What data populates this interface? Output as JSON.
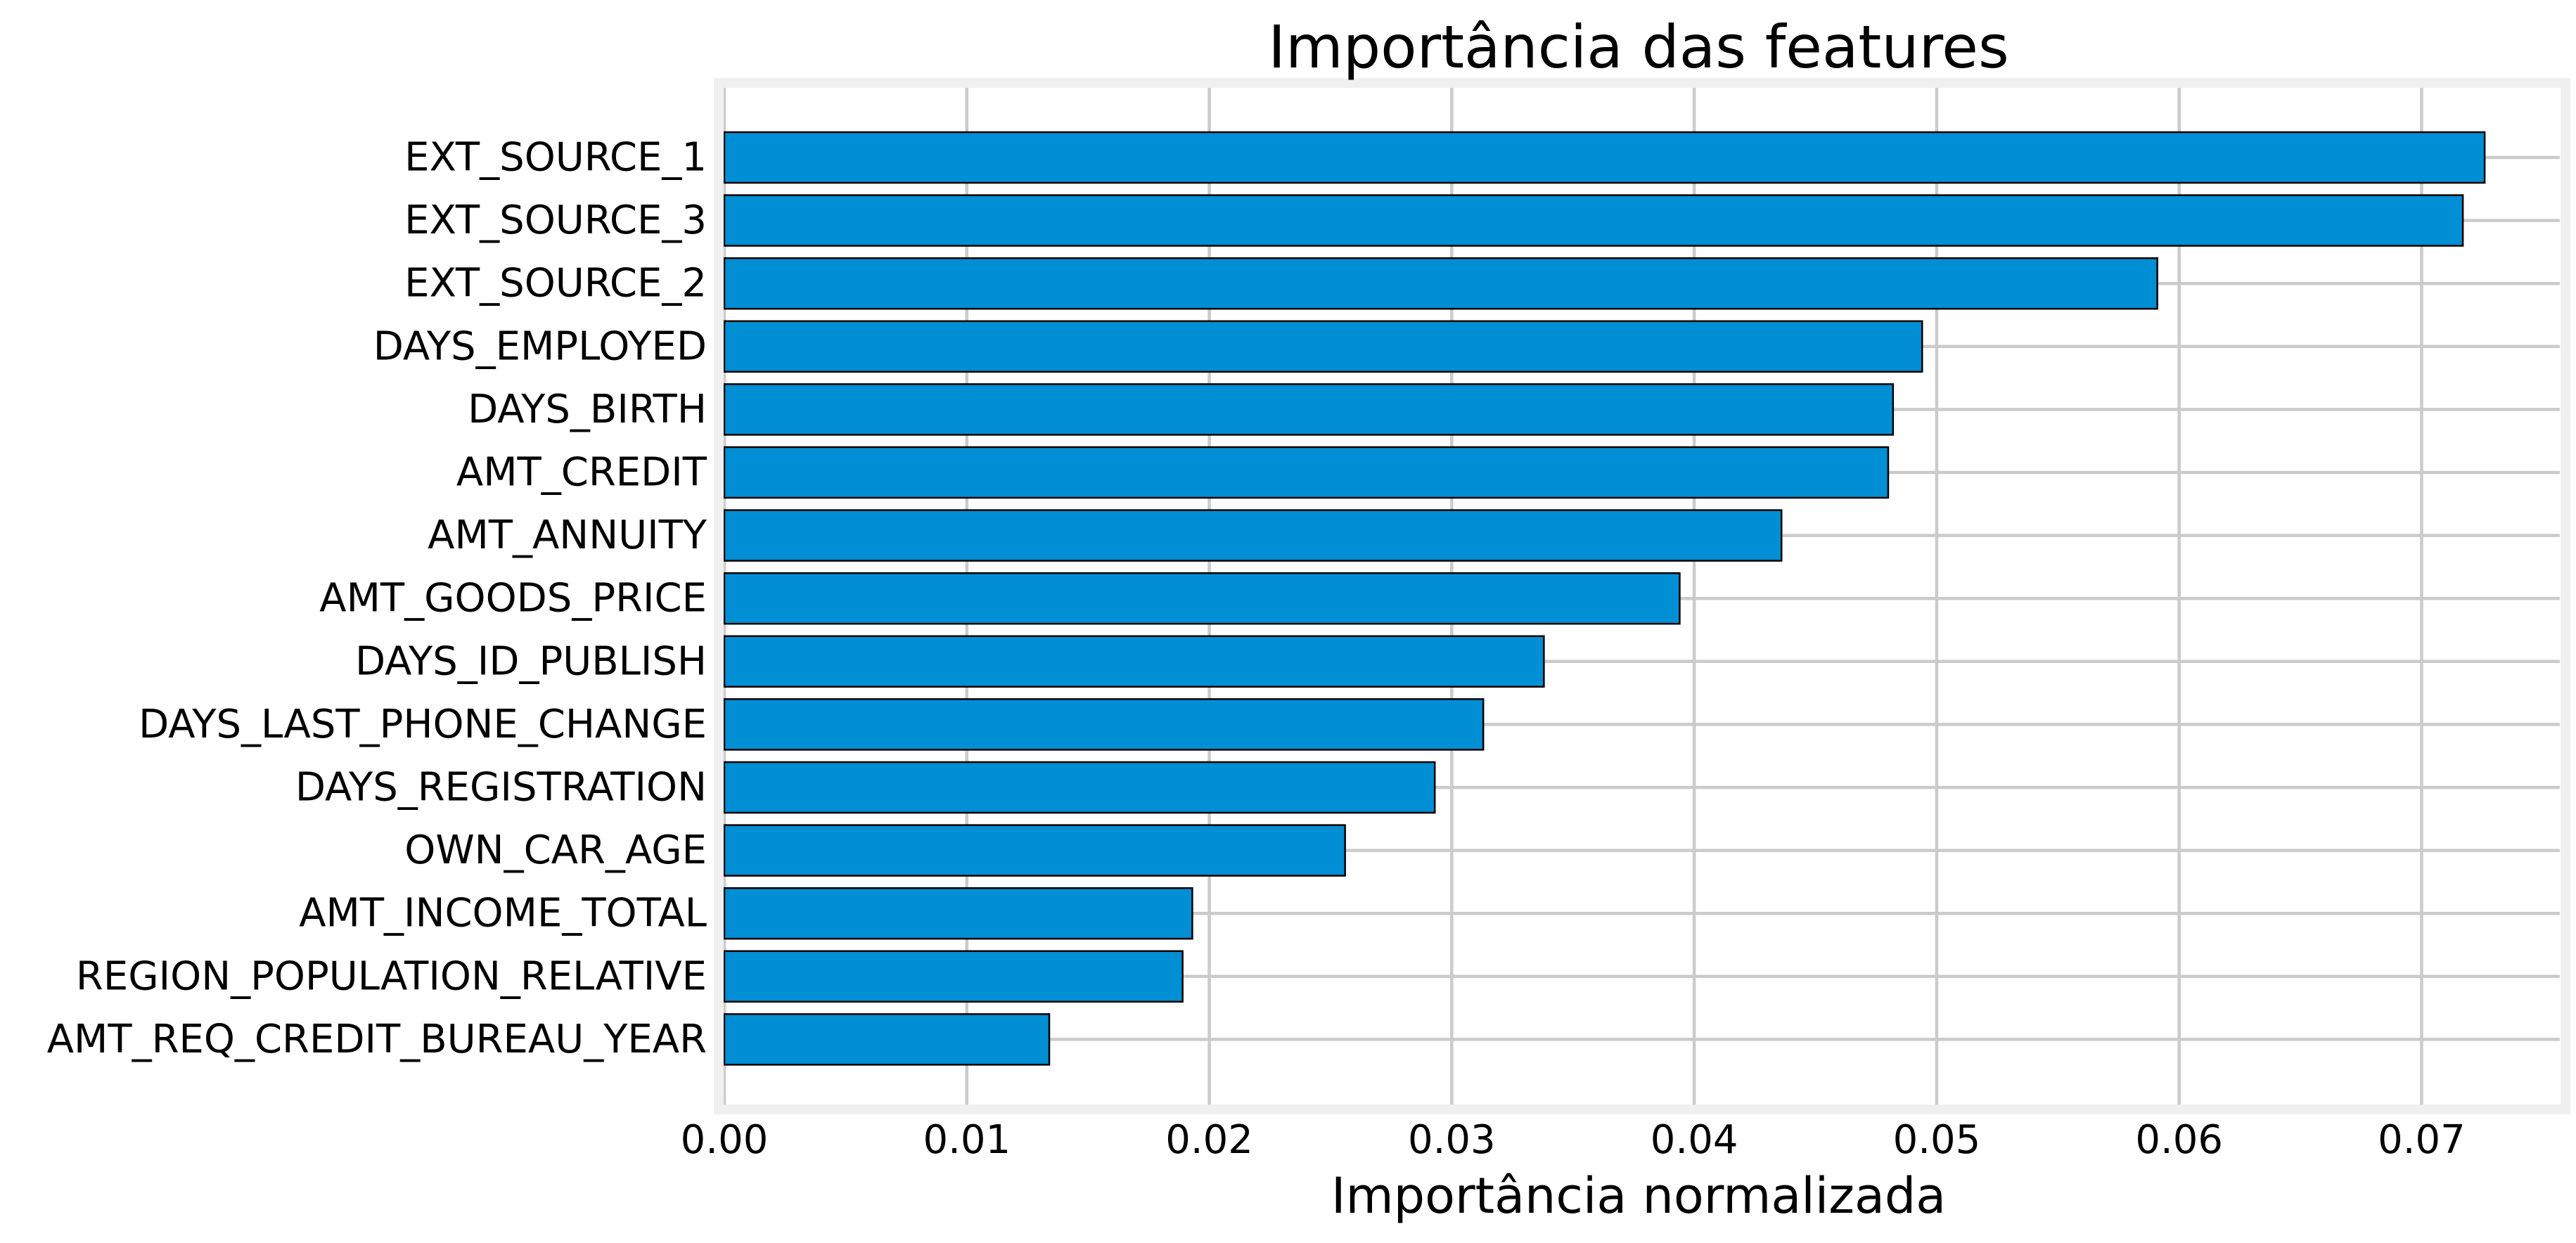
{
  "chart_data": {
    "type": "bar",
    "orientation": "horizontal",
    "title": "Importância das features",
    "xlabel": "Importância normalizada",
    "ylabel": "",
    "xlim": [
      0.0,
      0.0757
    ],
    "xticks": [
      0.0,
      0.01,
      0.02,
      0.03,
      0.04,
      0.05,
      0.06,
      0.07
    ],
    "xtick_labels": [
      "0.00",
      "0.01",
      "0.02",
      "0.03",
      "0.04",
      "0.05",
      "0.06",
      "0.07"
    ],
    "grid": true,
    "categories": [
      "EXT_SOURCE_1",
      "EXT_SOURCE_3",
      "EXT_SOURCE_2",
      "DAYS_EMPLOYED",
      "DAYS_BIRTH",
      "AMT_CREDIT",
      "AMT_ANNUITY",
      "AMT_GOODS_PRICE",
      "DAYS_ID_PUBLISH",
      "DAYS_LAST_PHONE_CHANGE",
      "DAYS_REGISTRATION",
      "OWN_CAR_AGE",
      "AMT_INCOME_TOTAL",
      "REGION_POPULATION_RELATIVE",
      "AMT_REQ_CREDIT_BUREAU_YEAR"
    ],
    "values": [
      0.0726,
      0.0717,
      0.0591,
      0.0494,
      0.0482,
      0.048,
      0.0436,
      0.0394,
      0.0338,
      0.0313,
      0.0293,
      0.0256,
      0.0193,
      0.0189,
      0.0134
    ],
    "bar_color": "#008fd5",
    "bar_edge_color": "#000000",
    "grid_color": "#cbcbcb",
    "frame_color": "#f0f0f0"
  }
}
